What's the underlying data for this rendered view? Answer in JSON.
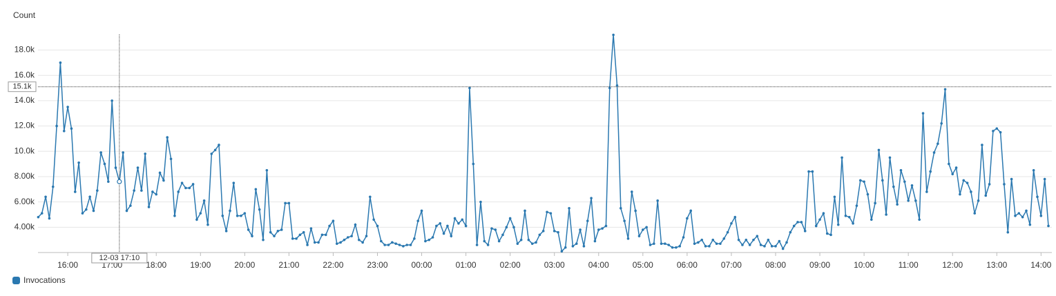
{
  "chart_data": {
    "type": "line",
    "y_label": "Count",
    "x": [
      "15:20",
      "15:25",
      "15:30",
      "15:35",
      "15:40",
      "15:45",
      "15:50",
      "15:55",
      "16:00",
      "16:05",
      "16:10",
      "16:15",
      "16:20",
      "16:25",
      "16:30",
      "16:35",
      "16:40",
      "16:45",
      "16:50",
      "16:55",
      "17:00",
      "17:05",
      "17:10",
      "17:15",
      "17:20",
      "17:25",
      "17:30",
      "17:35",
      "17:40",
      "17:45",
      "17:50",
      "17:55",
      "18:00",
      "18:05",
      "18:10",
      "18:15",
      "18:20",
      "18:25",
      "18:30",
      "18:35",
      "18:40",
      "18:45",
      "18:50",
      "18:55",
      "19:00",
      "19:05",
      "19:10",
      "19:15",
      "19:20",
      "19:25",
      "19:30",
      "19:35",
      "19:40",
      "19:45",
      "19:50",
      "19:55",
      "20:00",
      "20:05",
      "20:10",
      "20:15",
      "20:20",
      "20:25",
      "20:30",
      "20:35",
      "20:40",
      "20:45",
      "20:50",
      "20:55",
      "21:00",
      "21:05",
      "21:10",
      "21:15",
      "21:20",
      "21:25",
      "21:30",
      "21:35",
      "21:40",
      "21:45",
      "21:50",
      "21:55",
      "22:00",
      "22:05",
      "22:10",
      "22:15",
      "22:20",
      "22:25",
      "22:30",
      "22:35",
      "22:40",
      "22:45",
      "22:50",
      "22:55",
      "23:00",
      "23:05",
      "23:10",
      "23:15",
      "23:20",
      "23:25",
      "23:30",
      "23:35",
      "23:40",
      "23:45",
      "23:50",
      "23:55",
      "00:00",
      "00:05",
      "00:10",
      "00:15",
      "00:20",
      "00:25",
      "00:30",
      "00:35",
      "00:40",
      "00:45",
      "00:50",
      "00:55",
      "01:00",
      "01:05",
      "01:10",
      "01:15",
      "01:20",
      "01:25",
      "01:30",
      "01:35",
      "01:40",
      "01:45",
      "01:50",
      "01:55",
      "02:00",
      "02:05",
      "02:10",
      "02:15",
      "02:20",
      "02:25",
      "02:30",
      "02:35",
      "02:40",
      "02:45",
      "02:50",
      "02:55",
      "03:00",
      "03:05",
      "03:10",
      "03:15",
      "03:20",
      "03:25",
      "03:30",
      "03:35",
      "03:40",
      "03:45",
      "03:50",
      "03:55",
      "04:00",
      "04:05",
      "04:10",
      "04:15",
      "04:20",
      "04:25",
      "04:30",
      "04:35",
      "04:40",
      "04:45",
      "04:50",
      "04:55",
      "05:00",
      "05:05",
      "05:10",
      "05:15",
      "05:20",
      "05:25",
      "05:30",
      "05:35",
      "05:40",
      "05:45",
      "05:50",
      "05:55",
      "06:00",
      "06:05",
      "06:10",
      "06:15",
      "06:20",
      "06:25",
      "06:30",
      "06:35",
      "06:40",
      "06:45",
      "06:50",
      "06:55",
      "07:00",
      "07:05",
      "07:10",
      "07:15",
      "07:20",
      "07:25",
      "07:30",
      "07:35",
      "07:40",
      "07:45",
      "07:50",
      "07:55",
      "08:00",
      "08:05",
      "08:10",
      "08:15",
      "08:20",
      "08:25",
      "08:30",
      "08:35",
      "08:40",
      "08:45",
      "08:50",
      "08:55",
      "09:00",
      "09:05",
      "09:10",
      "09:15",
      "09:20",
      "09:25",
      "09:30",
      "09:35",
      "09:40",
      "09:45",
      "09:50",
      "09:55",
      "10:00",
      "10:05",
      "10:10",
      "10:15",
      "10:20",
      "10:25",
      "10:30",
      "10:35",
      "10:40",
      "10:45",
      "10:50",
      "10:55",
      "11:00",
      "11:05",
      "11:10",
      "11:15",
      "11:20",
      "11:25",
      "11:30",
      "11:35",
      "11:40",
      "11:45",
      "11:50",
      "11:55",
      "12:00",
      "12:05",
      "12:10",
      "12:15",
      "12:20",
      "12:25",
      "12:30",
      "12:35",
      "12:40",
      "12:45",
      "12:50",
      "12:55",
      "13:00",
      "13:05",
      "13:10",
      "13:15",
      "13:20",
      "13:25",
      "13:30",
      "13:35",
      "13:40",
      "13:45",
      "13:50",
      "13:55",
      "14:00",
      "14:05",
      "14:10"
    ],
    "series": [
      {
        "name": "Invocations",
        "color": "#2a78b0",
        "values": [
          4800,
          5100,
          6400,
          4700,
          7200,
          12000,
          17000,
          11600,
          13500,
          11800,
          6800,
          9100,
          5100,
          5400,
          6400,
          5300,
          6900,
          9900,
          9000,
          7600,
          14000,
          8700,
          7600,
          9900,
          5300,
          5700,
          6900,
          8700,
          6900,
          9800,
          5600,
          6800,
          6600,
          8300,
          7700,
          11100,
          9400,
          4900,
          6800,
          7500,
          7100,
          7100,
          7400,
          4600,
          5100,
          6100,
          4200,
          9800,
          10100,
          10500,
          4900,
          3700,
          5300,
          7500,
          4900,
          4900,
          5100,
          3800,
          3300,
          7000,
          5400,
          3000,
          8500,
          3600,
          3300,
          3700,
          3800,
          5900,
          5900,
          3100,
          3100,
          3400,
          3600,
          2600,
          3900,
          2800,
          2800,
          3400,
          3400,
          4100,
          4500,
          2700,
          2800,
          3000,
          3200,
          3300,
          4200,
          3000,
          2800,
          3300,
          6400,
          4600,
          4100,
          2900,
          2600,
          2600,
          2800,
          2700,
          2600,
          2500,
          2600,
          2600,
          3100,
          4500,
          5300,
          2900,
          3000,
          3200,
          4100,
          4300,
          3500,
          4100,
          3300,
          4700,
          4300,
          4600,
          4100,
          15000,
          9000,
          2600,
          6000,
          2900,
          2600,
          3900,
          3800,
          2900,
          3400,
          4000,
          4700,
          4000,
          2700,
          3000,
          5300,
          3000,
          2700,
          2800,
          3400,
          3700,
          5200,
          5100,
          3700,
          3600,
          2100,
          2400,
          5500,
          2500,
          2700,
          3800,
          2500,
          4500,
          6300,
          2900,
          3800,
          3900,
          4100,
          15000,
          19200,
          15200,
          5500,
          4500,
          3100,
          6800,
          5300,
          3300,
          3800,
          4000,
          2600,
          2700,
          6100,
          2700,
          2700,
          2600,
          2400,
          2400,
          2500,
          3200,
          4700,
          5300,
          2700,
          2800,
          3000,
          2500,
          2500,
          3000,
          2700,
          2700,
          3100,
          3600,
          4300,
          4800,
          3000,
          2600,
          3000,
          2600,
          3000,
          3300,
          2600,
          2500,
          3000,
          2500,
          2500,
          2900,
          2300,
          2800,
          3600,
          4100,
          4400,
          4400,
          3700,
          8400,
          8400,
          4100,
          4600,
          5100,
          3500,
          3400,
          6400,
          4200,
          9500,
          4900,
          4800,
          4300,
          5700,
          7700,
          7600,
          6600,
          4600,
          5900,
          10100,
          7700,
          5000,
          9500,
          7200,
          5800,
          8500,
          7600,
          6100,
          7300,
          6100,
          4600,
          13000,
          6800,
          8400,
          9900,
          10600,
          12200,
          14900,
          9000,
          8200,
          8700,
          6600,
          7700,
          7500,
          6800,
          5100,
          6100,
          10500,
          6500,
          7400,
          11600,
          11800,
          11500,
          7400,
          3600,
          7800,
          4900,
          5100,
          4800,
          5300,
          4200,
          8500,
          6400,
          4900,
          7800,
          4100
        ]
      }
    ],
    "xticks": [
      "16:00",
      "17:00",
      "18:00",
      "19:00",
      "20:00",
      "21:00",
      "22:00",
      "23:00",
      "00:00",
      "01:00",
      "02:00",
      "03:00",
      "04:00",
      "05:00",
      "06:00",
      "07:00",
      "08:00",
      "09:00",
      "10:00",
      "11:00",
      "12:00",
      "13:00",
      "14:00"
    ],
    "ylim": [
      2000,
      19500
    ],
    "yticks": [
      {
        "value": 4000,
        "label": "4.00k"
      },
      {
        "value": 6000,
        "label": "6.00k"
      },
      {
        "value": 8000,
        "label": "8.00k"
      },
      {
        "value": 10000,
        "label": "10.0k"
      },
      {
        "value": 12000,
        "label": "12.0k"
      },
      {
        "value": 14000,
        "label": "14.0k"
      },
      {
        "value": 16000,
        "label": "16.0k"
      },
      {
        "value": 18000,
        "label": "18.0k"
      }
    ],
    "grid": true,
    "crosshair": {
      "x": {
        "value": "17:10",
        "label": "12-03 17:10"
      },
      "y": {
        "value": 15100,
        "label": "15.1k"
      }
    }
  }
}
